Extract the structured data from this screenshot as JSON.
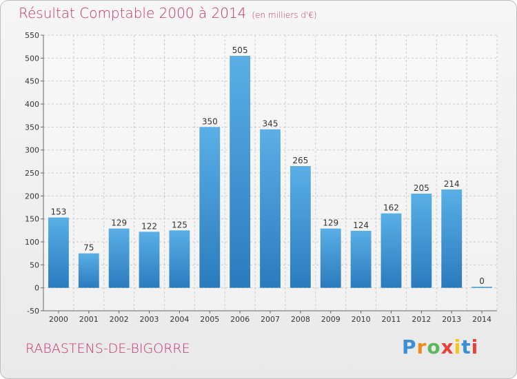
{
  "chart_data": {
    "type": "bar",
    "title": "Résultat Comptable 2000 à 2014",
    "subtitle": "(en milliers d'€)",
    "categories": [
      "2000",
      "2001",
      "2002",
      "2003",
      "2004",
      "2005",
      "2006",
      "2007",
      "2008",
      "2009",
      "2010",
      "2011",
      "2012",
      "2013",
      "2014"
    ],
    "values": [
      153,
      75,
      129,
      122,
      125,
      350,
      505,
      345,
      265,
      129,
      124,
      162,
      205,
      214,
      0
    ],
    "ylim": [
      -50,
      550
    ],
    "yticks": [
      "-50",
      "0",
      "50",
      "100",
      "150",
      "200",
      "250",
      "300",
      "350",
      "400",
      "450",
      "500",
      "550"
    ],
    "grid": true,
    "xlabel": "",
    "ylabel": "",
    "colors": {
      "bar_top": "#5aafe6",
      "bar_bottom": "#2a7bbd",
      "title": "#c8326a"
    }
  },
  "footer": {
    "city": "RABASTENS-DE-BIGORRE",
    "logo_letters": [
      "P",
      "r",
      "o",
      "x",
      "i",
      "t",
      "i"
    ],
    "logo_colors": [
      "#3a8fd8",
      "#f08a1c",
      "#5cb85c",
      "#e8413c",
      "#f5c518",
      "#3a8fd8",
      "#e8413c"
    ]
  }
}
